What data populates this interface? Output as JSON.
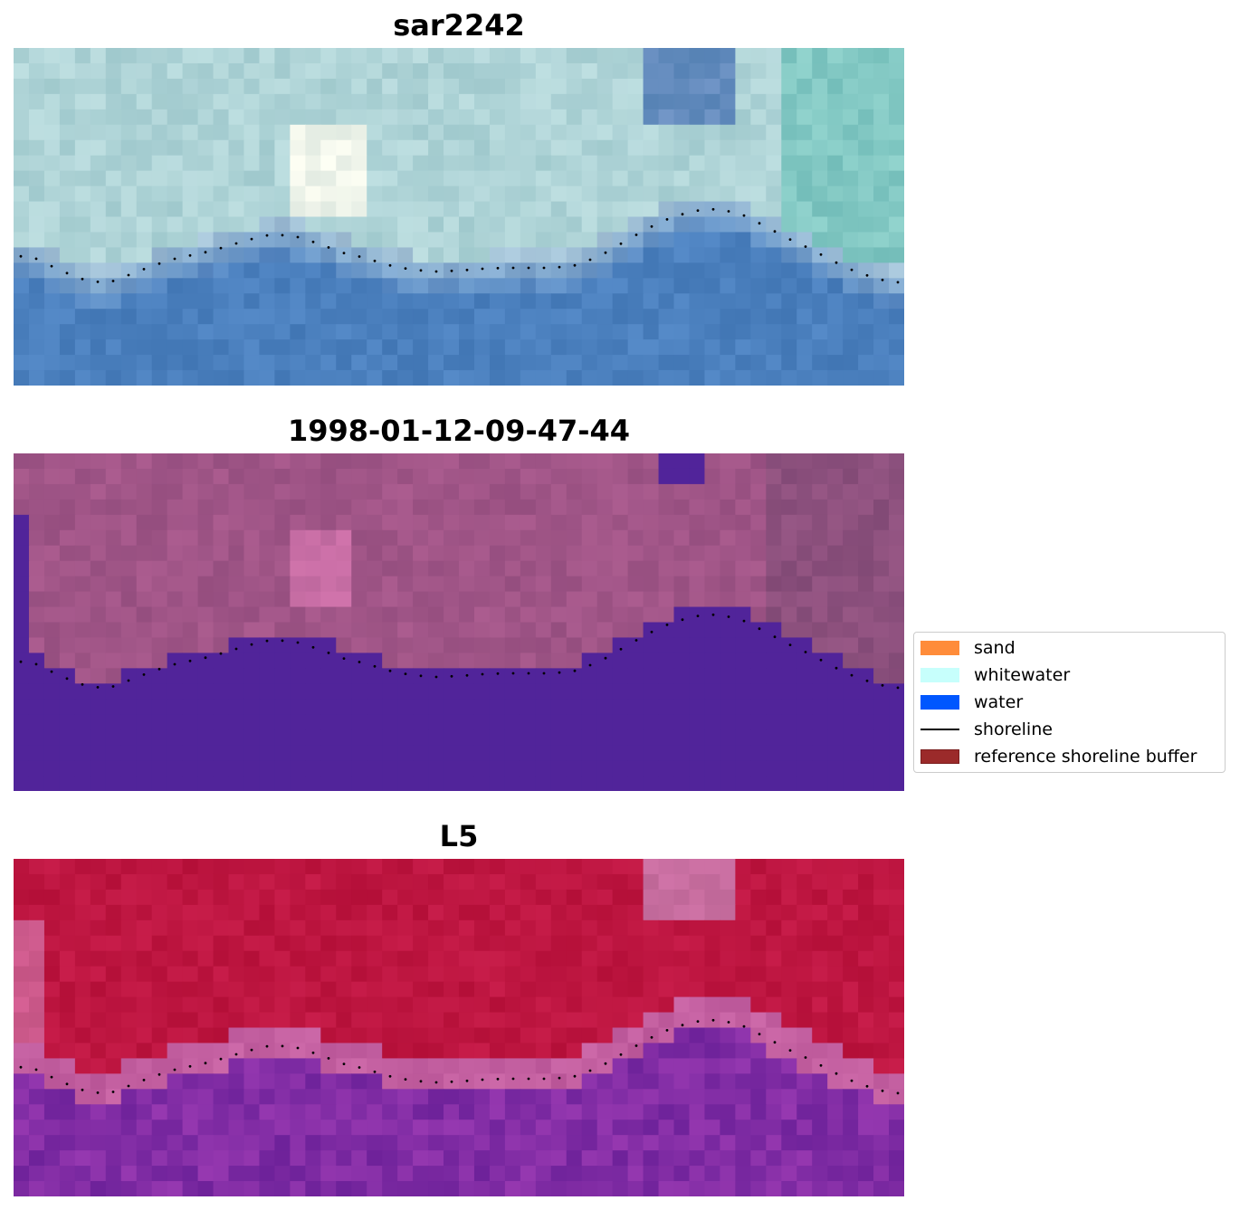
{
  "panels": [
    {
      "title": "sar2242",
      "style": "rgb"
    },
    {
      "title": "1998-01-12-09-47-44",
      "style": "classification"
    },
    {
      "title": "L5",
      "style": "index"
    }
  ],
  "shoreline": {
    "y": [
      229,
      233,
      246,
      256,
      260,
      250,
      240,
      232,
      227,
      220,
      212,
      206,
      208,
      216,
      226,
      232,
      240,
      245,
      247,
      246,
      244,
      243,
      243,
      243,
      240,
      230,
      215,
      200,
      188,
      180,
      178,
      183,
      196,
      210,
      222,
      236,
      248,
      256,
      260
    ]
  },
  "legend": {
    "items": [
      {
        "label": "sand",
        "color": "#ff8c3a",
        "kind": "patch"
      },
      {
        "label": "whitewater",
        "color": "#c7fffc",
        "kind": "patch"
      },
      {
        "label": "water",
        "color": "#0057ff",
        "kind": "patch"
      },
      {
        "label": "shoreline",
        "color": "#000000",
        "kind": "line"
      },
      {
        "label": "reference shoreline buffer",
        "color": "#9b2a2a",
        "kind": "patch",
        "edge": "#7a1e1e"
      }
    ]
  }
}
